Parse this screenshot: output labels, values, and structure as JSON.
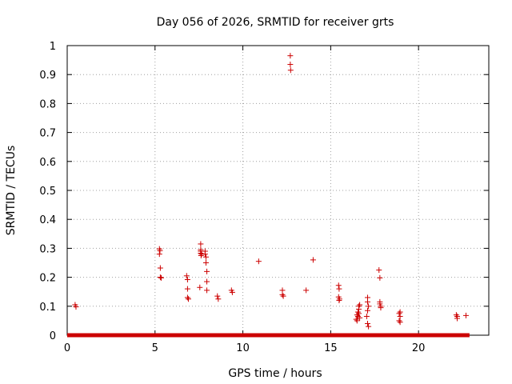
{
  "chart_data": {
    "type": "scatter",
    "title": "Day 056 of 2026, SRMTID for receiver grts",
    "xlabel": "GPS time / hours",
    "ylabel": "SRMTID / TECUs",
    "xlim": [
      0,
      24
    ],
    "ylim": [
      0,
      1
    ],
    "x_ticks": [
      0,
      5,
      10,
      15,
      20
    ],
    "x_tick_labels": [
      "0",
      "5",
      "10",
      "15",
      "20"
    ],
    "y_ticks": [
      0,
      0.1,
      0.2,
      0.3,
      0.4,
      0.5,
      0.6,
      0.7,
      0.8,
      0.9,
      1
    ],
    "y_tick_labels": [
      "0",
      "0.1",
      "0.2",
      "0.3",
      "0.4",
      "0.5",
      "0.6",
      "0.7",
      "0.8",
      "0.9",
      "1"
    ],
    "grid": true,
    "marker": "+",
    "color": "#cc0000",
    "baseline": {
      "x_start": 0.0,
      "x_end": 22.9,
      "y": 0
    },
    "series": [
      {
        "name": "SRMTID",
        "points": [
          [
            0.45,
            0.105
          ],
          [
            0.5,
            0.098
          ],
          [
            5.25,
            0.298
          ],
          [
            5.28,
            0.292
          ],
          [
            5.25,
            0.28
          ],
          [
            5.3,
            0.232
          ],
          [
            5.3,
            0.2
          ],
          [
            5.35,
            0.198
          ],
          [
            6.8,
            0.205
          ],
          [
            6.85,
            0.192
          ],
          [
            6.85,
            0.16
          ],
          [
            6.85,
            0.13
          ],
          [
            6.9,
            0.125
          ],
          [
            7.55,
            0.165
          ],
          [
            7.6,
            0.315
          ],
          [
            7.6,
            0.295
          ],
          [
            7.6,
            0.29
          ],
          [
            7.6,
            0.283
          ],
          [
            7.62,
            0.275
          ],
          [
            7.65,
            0.28
          ],
          [
            7.85,
            0.29
          ],
          [
            7.85,
            0.28
          ],
          [
            7.9,
            0.27
          ],
          [
            7.9,
            0.25
          ],
          [
            7.95,
            0.22
          ],
          [
            7.95,
            0.185
          ],
          [
            7.95,
            0.155
          ],
          [
            8.55,
            0.135
          ],
          [
            8.6,
            0.125
          ],
          [
            9.35,
            0.155
          ],
          [
            9.4,
            0.148
          ],
          [
            10.9,
            0.255
          ],
          [
            12.25,
            0.155
          ],
          [
            12.25,
            0.14
          ],
          [
            12.3,
            0.135
          ],
          [
            12.7,
            0.965
          ],
          [
            12.7,
            0.935
          ],
          [
            12.72,
            0.915
          ],
          [
            13.6,
            0.155
          ],
          [
            14.0,
            0.26
          ],
          [
            15.45,
            0.172
          ],
          [
            15.48,
            0.16
          ],
          [
            15.45,
            0.132
          ],
          [
            15.5,
            0.125
          ],
          [
            15.48,
            0.12
          ],
          [
            16.45,
            0.055
          ],
          [
            16.5,
            0.05
          ],
          [
            16.5,
            0.07
          ],
          [
            16.55,
            0.065
          ],
          [
            16.55,
            0.08
          ],
          [
            16.6,
            0.09
          ],
          [
            16.6,
            0.075
          ],
          [
            16.6,
            0.1
          ],
          [
            16.65,
            0.105
          ],
          [
            16.65,
            0.06
          ],
          [
            17.05,
            0.065
          ],
          [
            17.1,
            0.13
          ],
          [
            17.1,
            0.115
          ],
          [
            17.15,
            0.1
          ],
          [
            17.1,
            0.085
          ],
          [
            17.1,
            0.04
          ],
          [
            17.15,
            0.03
          ],
          [
            17.75,
            0.225
          ],
          [
            17.8,
            0.198
          ],
          [
            17.8,
            0.115
          ],
          [
            17.8,
            0.108
          ],
          [
            17.85,
            0.1
          ],
          [
            17.85,
            0.095
          ],
          [
            18.9,
            0.075
          ],
          [
            18.95,
            0.08
          ],
          [
            18.95,
            0.065
          ],
          [
            18.9,
            0.05
          ],
          [
            18.95,
            0.045
          ],
          [
            22.15,
            0.07
          ],
          [
            22.2,
            0.065
          ],
          [
            22.2,
            0.058
          ],
          [
            22.7,
            0.068
          ]
        ]
      }
    ]
  }
}
